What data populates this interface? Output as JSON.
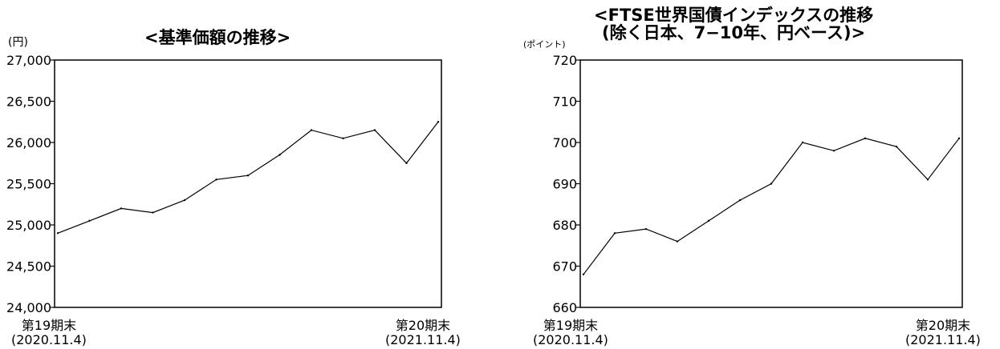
{
  "chart_data": [
    {
      "type": "line",
      "title": "<基準価額の推移>",
      "ylabel": "(円)",
      "ylim": [
        24000,
        27000
      ],
      "yticks": [
        "24,000",
        "24,500",
        "25,000",
        "25,500",
        "26,000",
        "26,500",
        "27,000"
      ],
      "ytick_values": [
        24000,
        24500,
        25000,
        25500,
        26000,
        26500,
        27000
      ],
      "x_start_label": [
        "第19期末",
        "(2020.11.4)"
      ],
      "x_end_label": [
        "第20期末",
        "(2021.11.4)"
      ],
      "x": [
        "2020-11",
        "2020-12",
        "2021-01",
        "2021-02",
        "2021-03",
        "2021-04",
        "2021-05",
        "2021-06",
        "2021-07",
        "2021-08",
        "2021-09",
        "2021-10",
        "2021-11"
      ],
      "values": [
        24900,
        25050,
        25200,
        25150,
        25300,
        25550,
        25600,
        25850,
        26150,
        26050,
        26150,
        25750,
        26250
      ],
      "grid": false,
      "line_color": "#000000"
    },
    {
      "type": "line",
      "title": [
        "<FTSE世界国債インデックスの推移",
        "(除く日本、7−10年、円ベース)>"
      ],
      "ylabel": "(ポイント)",
      "ylim": [
        660,
        720
      ],
      "yticks": [
        "660",
        "670",
        "680",
        "690",
        "700",
        "710",
        "720"
      ],
      "ytick_values": [
        660,
        670,
        680,
        690,
        700,
        710,
        720
      ],
      "x_start_label": [
        "第19期末",
        "(2020.11.4)"
      ],
      "x_end_label": [
        "第20期末",
        "(2021.11.4)"
      ],
      "x": [
        "2020-11",
        "2020-12",
        "2021-01",
        "2021-02",
        "2021-03",
        "2021-04",
        "2021-05",
        "2021-06",
        "2021-07",
        "2021-08",
        "2021-09",
        "2021-10",
        "2021-11"
      ],
      "values": [
        668,
        678,
        679,
        676,
        681,
        686,
        690,
        700,
        698,
        701,
        699,
        691,
        701
      ],
      "grid": false,
      "line_color": "#000000"
    }
  ]
}
